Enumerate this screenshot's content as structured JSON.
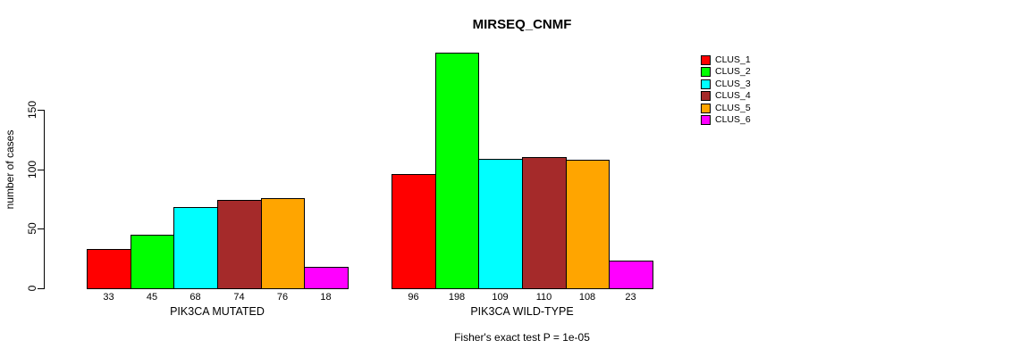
{
  "page": {
    "background": "#ffffff"
  },
  "chart_data": {
    "type": "bar",
    "title": "MIRSEQ_CNMF",
    "ylabel": "number of cases",
    "subtitle": "Fisher's exact test P = 1e-05",
    "yticks": [
      0,
      50,
      100,
      150
    ],
    "ylim": [
      0,
      200
    ],
    "grid": false,
    "legend_position": "right",
    "bar_value_labels_shown": true,
    "series_names": [
      "CLUS_1",
      "CLUS_2",
      "CLUS_3",
      "CLUS_4",
      "CLUS_5",
      "CLUS_6"
    ],
    "colors": [
      "#FF0000",
      "#00FF00",
      "#00FFFF",
      "#A52A2A",
      "#FFA500",
      "#FF00FF"
    ],
    "groups": [
      {
        "label": "PIK3CA MUTATED",
        "values": [
          33,
          45,
          68,
          74,
          76,
          18
        ]
      },
      {
        "label": "PIK3CA WILD-TYPE",
        "values": [
          96,
          198,
          109,
          110,
          108,
          23
        ]
      }
    ]
  }
}
